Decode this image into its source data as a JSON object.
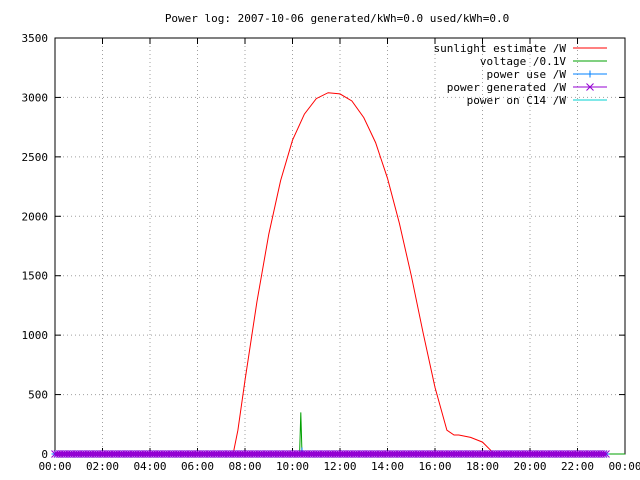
{
  "chart_data": {
    "type": "line",
    "title": "Power log: 2007-10-06 generated/kWh=0.0 used/kWh=0.0",
    "xlabel": "",
    "ylabel": "",
    "x_unit": "hours",
    "xlim": [
      0,
      24
    ],
    "ylim": [
      0,
      3500
    ],
    "x_ticks": [
      {
        "value": 0,
        "label": "00:00"
      },
      {
        "value": 2,
        "label": "02:00"
      },
      {
        "value": 4,
        "label": "04:00"
      },
      {
        "value": 6,
        "label": "06:00"
      },
      {
        "value": 8,
        "label": "08:00"
      },
      {
        "value": 10,
        "label": "10:00"
      },
      {
        "value": 12,
        "label": "12:00"
      },
      {
        "value": 14,
        "label": "14:00"
      },
      {
        "value": 16,
        "label": "16:00"
      },
      {
        "value": 18,
        "label": "18:00"
      },
      {
        "value": 20,
        "label": "20:00"
      },
      {
        "value": 22,
        "label": "22:00"
      },
      {
        "value": 24,
        "label": "00:00"
      }
    ],
    "y_ticks": [
      {
        "value": 0,
        "label": "0"
      },
      {
        "value": 500,
        "label": "500"
      },
      {
        "value": 1000,
        "label": "1000"
      },
      {
        "value": 1500,
        "label": "1500"
      },
      {
        "value": 2000,
        "label": "2000"
      },
      {
        "value": 2500,
        "label": "2500"
      },
      {
        "value": 3000,
        "label": "3000"
      },
      {
        "value": 3500,
        "label": "3500"
      }
    ],
    "grid": true,
    "legend_position": "top-right",
    "series": [
      {
        "name": "sunlight estimate /W",
        "color": "#ff0000",
        "marker": "none",
        "x": [
          0,
          7.5,
          7.7,
          8.0,
          8.5,
          9.0,
          9.5,
          10.0,
          10.5,
          11.0,
          11.5,
          12.0,
          12.5,
          13.0,
          13.5,
          14.0,
          14.5,
          15.0,
          15.5,
          16.0,
          16.5,
          16.8,
          17.0,
          17.5,
          18.0,
          18.3,
          18.5,
          24
        ],
        "y": [
          0,
          0,
          200,
          620,
          1280,
          1850,
          2300,
          2640,
          2860,
          2990,
          3040,
          3030,
          2970,
          2830,
          2620,
          2320,
          1940,
          1500,
          1020,
          560,
          200,
          160,
          160,
          140,
          100,
          40,
          0,
          0
        ]
      },
      {
        "name": "voltage /0.1V",
        "color": "#00a000",
        "marker": "none",
        "x": [
          0,
          10.3,
          10.35,
          10.4,
          10.45,
          24
        ],
        "y": [
          0,
          0,
          350,
          0,
          0,
          0
        ]
      },
      {
        "name": "power use /W",
        "color": "#0080ff",
        "marker": "+",
        "x": [
          0,
          10.3,
          10.4,
          10.5,
          23.2
        ],
        "y": [
          0,
          0,
          25,
          0,
          0
        ]
      },
      {
        "name": "power generated /W",
        "color": "#9400d3",
        "marker": "x",
        "x": [
          0,
          23.2
        ],
        "y": [
          0,
          0
        ]
      },
      {
        "name": "power on C14 /W",
        "color": "#00d0d0",
        "marker": "none",
        "x": [],
        "y": []
      }
    ]
  }
}
